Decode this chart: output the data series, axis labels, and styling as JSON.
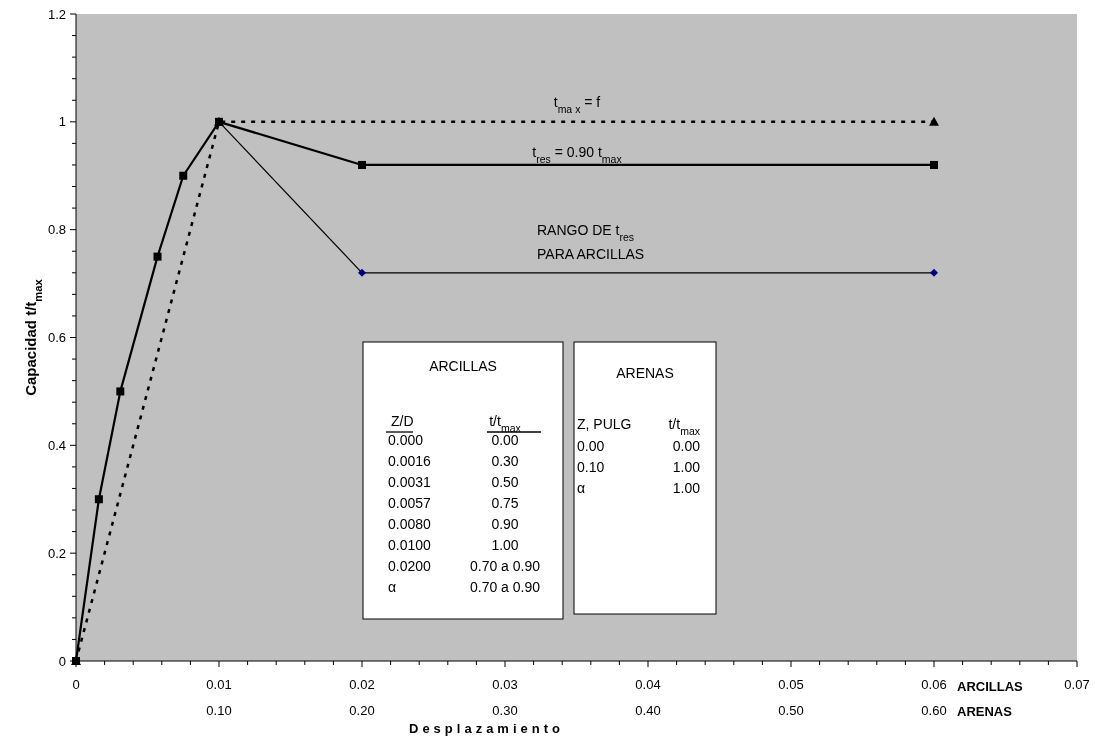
{
  "chart_data": {
    "type": "line",
    "xlabel": "Desplazamiento",
    "ylabel": "Capacidad t/t$_{max}$",
    "xlim": [
      0,
      0.07
    ],
    "xticks": [
      0,
      {
        "value": 0.002,
        "label": null
      },
      {
        "value": 0.004,
        "label": null
      },
      {
        "value": 0.006,
        "label": null
      },
      {
        "value": 0.008,
        "label": null
      },
      0.01,
      {
        "value": 0.012,
        "label": null
      },
      {
        "value": 0.014,
        "label": null
      },
      {
        "value": 0.016,
        "label": null
      },
      {
        "value": 0.018,
        "label": null
      },
      0.02,
      {
        "value": 0.022,
        "label": null
      },
      {
        "value": 0.024,
        "label": null
      },
      {
        "value": 0.026,
        "label": null
      },
      {
        "value": 0.028,
        "label": null
      },
      0.03,
      {
        "value": 0.032,
        "label": null
      },
      {
        "value": 0.034,
        "label": null
      },
      {
        "value": 0.036,
        "label": null
      },
      {
        "value": 0.038,
        "label": null
      },
      0.04,
      {
        "value": 0.042,
        "label": null
      },
      {
        "value": 0.044,
        "label": null
      },
      {
        "value": 0.046,
        "label": null
      },
      {
        "value": 0.048,
        "label": null
      },
      0.05,
      {
        "value": 0.052,
        "label": null
      },
      {
        "value": 0.054,
        "label": null
      },
      {
        "value": 0.056,
        "label": null
      },
      {
        "value": 0.058,
        "label": null
      },
      0.06,
      {
        "value": 0.062,
        "label": null
      },
      {
        "value": 0.064,
        "label": null
      },
      {
        "value": 0.066,
        "label": null
      },
      {
        "value": 0.068,
        "label": null
      },
      0.07
    ],
    "x2lim": [
      0,
      0.7
    ],
    "x2ticks": [
      {
        "value": 0.1,
        "label": "0.10"
      },
      {
        "value": 0.2,
        "label": "0.20"
      },
      {
        "value": 0.3,
        "label": "0.30"
      },
      {
        "value": 0.4,
        "label": "0.40"
      },
      {
        "value": 0.5,
        "label": "0.50"
      },
      {
        "value": 0.6,
        "label": "0.60"
      }
    ],
    "ylim": [
      0,
      1.2
    ],
    "yticks": [
      0,
      {
        "value": 0.04,
        "label": null
      },
      {
        "value": 0.08,
        "label": null
      },
      {
        "value": 0.12,
        "label": null
      },
      {
        "value": 0.16,
        "label": null
      },
      0.2,
      {
        "value": 0.24,
        "label": null
      },
      {
        "value": 0.28,
        "label": null
      },
      {
        "value": 0.32,
        "label": null
      },
      {
        "value": 0.36,
        "label": null
      },
      0.4,
      {
        "value": 0.44,
        "label": null
      },
      {
        "value": 0.48,
        "label": null
      },
      {
        "value": 0.52,
        "label": null
      },
      {
        "value": 0.56,
        "label": null
      },
      0.6,
      {
        "value": 0.64,
        "label": null
      },
      {
        "value": 0.68,
        "label": null
      },
      {
        "value": 0.72,
        "label": null
      },
      {
        "value": 0.76,
        "label": null
      },
      0.8,
      {
        "value": 0.84,
        "label": null
      },
      {
        "value": 0.88,
        "label": null
      },
      {
        "value": 0.92,
        "label": null
      },
      {
        "value": 0.96,
        "label": null
      },
      1,
      {
        "value": 1.04,
        "label": null
      },
      {
        "value": 1.08,
        "label": null
      },
      {
        "value": 1.12,
        "label": null
      },
      {
        "value": 1.16,
        "label": null
      },
      1.2
    ],
    "grid": false,
    "series": [
      {
        "color": "#000000",
        "marker": "square",
        "line_style": "solid",
        "x": [
          0,
          0.0016,
          0.0031,
          0.0057,
          0.0075,
          0.01,
          0.02,
          0.06
        ],
        "values": [
          0,
          0.3,
          0.5,
          0.75,
          0.9,
          1.0,
          0.92,
          0.92
        ]
      },
      {
        "color": "#000080",
        "marker": "diamond",
        "line_style": "solid",
        "x": [
          0.01,
          0.02,
          0.06
        ],
        "values": [
          1.0,
          0.72,
          0.72
        ]
      },
      {
        "color": "#000000",
        "marker": "triangle",
        "line_style": "dashed",
        "x": [
          0,
          0.01,
          0.06
        ],
        "values": [
          0,
          1.0,
          1.0
        ]
      }
    ],
    "annotations": [
      "t$_{ma x}$ = f",
      "t$_{res}$ = 0.90 t$_{max}$",
      "RANGO DE t$_{res}$",
      "PARA ARCILLAS",
      "ARCILLAS",
      "ARENAS",
      "ARCILLAS",
      "Z/D",
      "t/t$_{max}$",
      "0.000",
      "0.00",
      "0.0016",
      "0.30",
      "0.0031",
      "0.50",
      "0.0057",
      "0.75",
      "0.0080",
      "0.90",
      "0.0100",
      "1.00",
      "0.0200",
      "0.70 a 0.90",
      "α",
      "0.70 a 0.90",
      "ARENAS",
      "Z, PULG",
      "t/t$_{max}$",
      "0.00",
      "0.00",
      "0.10",
      "1.00",
      "α",
      "1.00"
    ]
  }
}
